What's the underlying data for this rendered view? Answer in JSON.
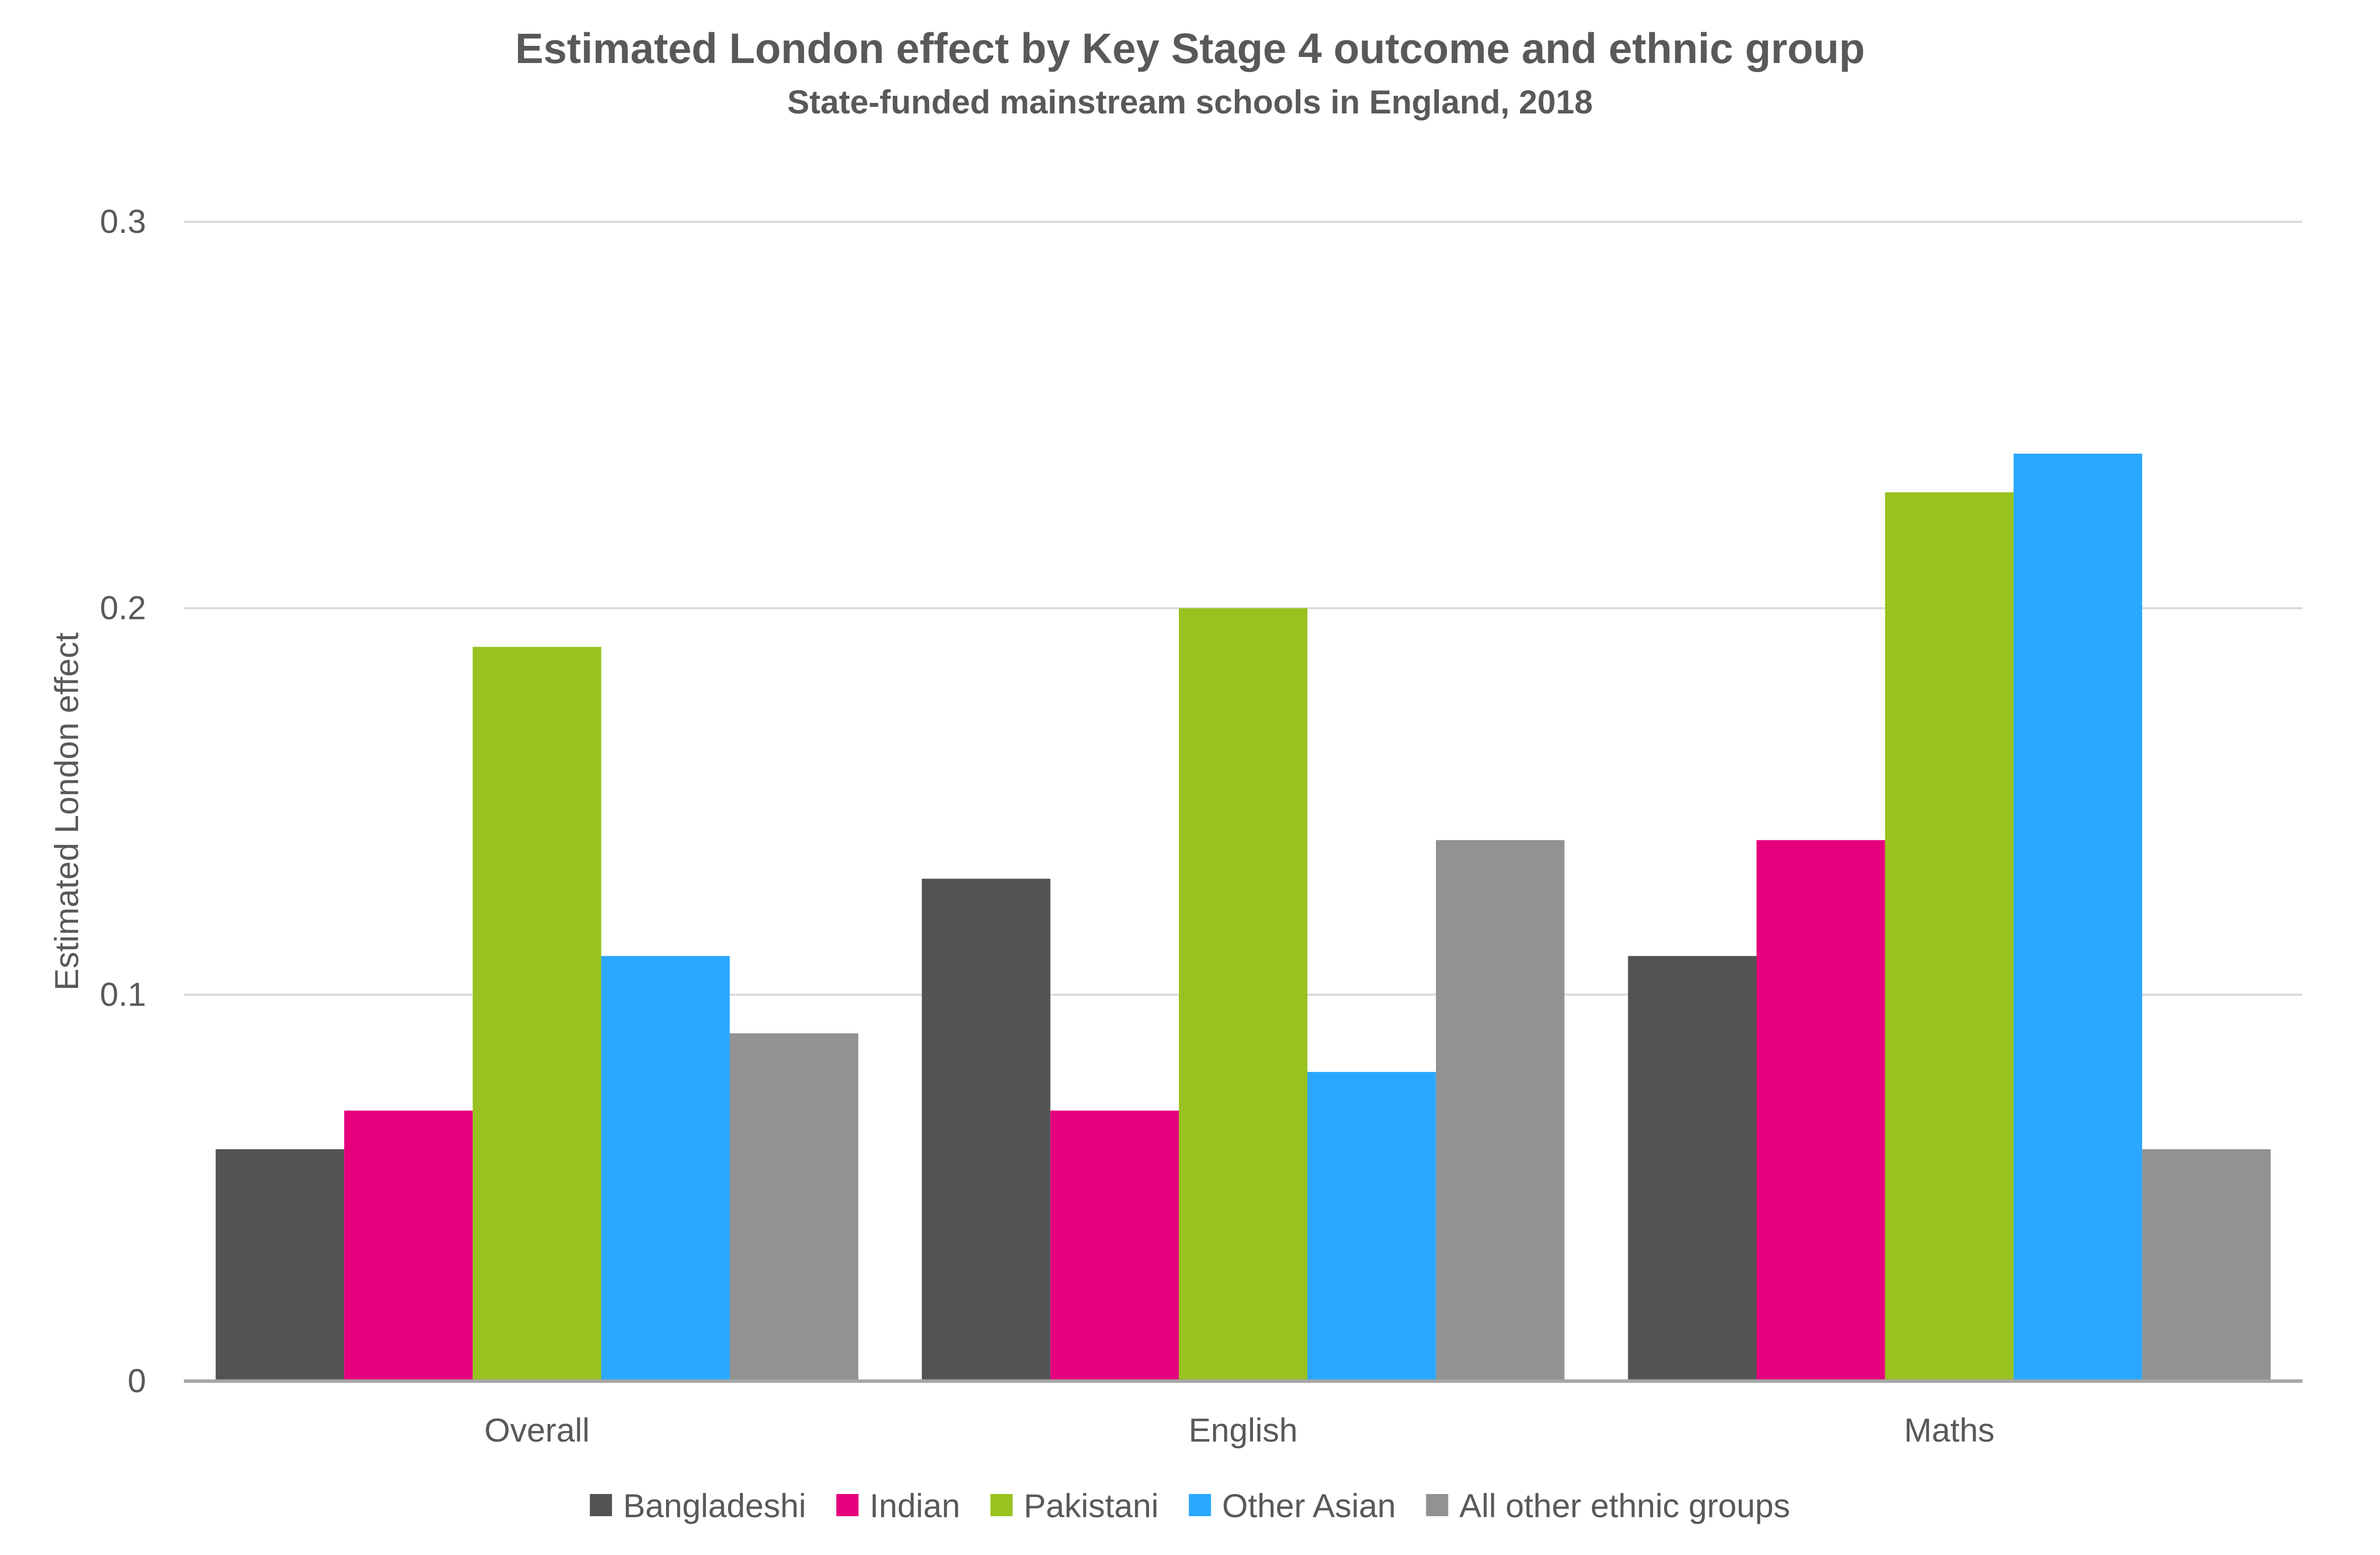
{
  "chart_data": {
    "type": "bar",
    "title": "Estimated London effect by Key Stage 4 outcome and ethnic group",
    "subtitle": "State-funded mainstream schools in England, 2018",
    "xlabel": "",
    "ylabel": "Estimated London effect",
    "ylim": [
      0,
      0.3
    ],
    "yticks": [
      {
        "value": 0,
        "label": "0"
      },
      {
        "value": 0.1,
        "label": "0.1"
      },
      {
        "value": 0.2,
        "label": "0.2"
      },
      {
        "value": 0.3,
        "label": "0.3"
      }
    ],
    "grid": true,
    "legend_position": "bottom",
    "categories": [
      "Overall",
      "English",
      "Maths"
    ],
    "series": [
      {
        "name": "Bangladeshi",
        "color": "#535353",
        "values": [
          0.06,
          0.13,
          0.11
        ]
      },
      {
        "name": "Indian",
        "color": "#e6007e",
        "values": [
          0.07,
          0.07,
          0.14
        ]
      },
      {
        "name": "Pakistani",
        "color": "#98c21f",
        "values": [
          0.19,
          0.2,
          0.23
        ]
      },
      {
        "name": "Other Asian",
        "color": "#2aa8ff",
        "values": [
          0.11,
          0.08,
          0.24
        ]
      },
      {
        "name": "All other ethnic groups",
        "color": "#929292",
        "values": [
          0.09,
          0.14,
          0.06
        ]
      }
    ],
    "colors": {
      "title": "#595959",
      "axis_text": "#595959",
      "gridline": "#d9d9d9",
      "baseline": "#a6a6a6"
    }
  }
}
